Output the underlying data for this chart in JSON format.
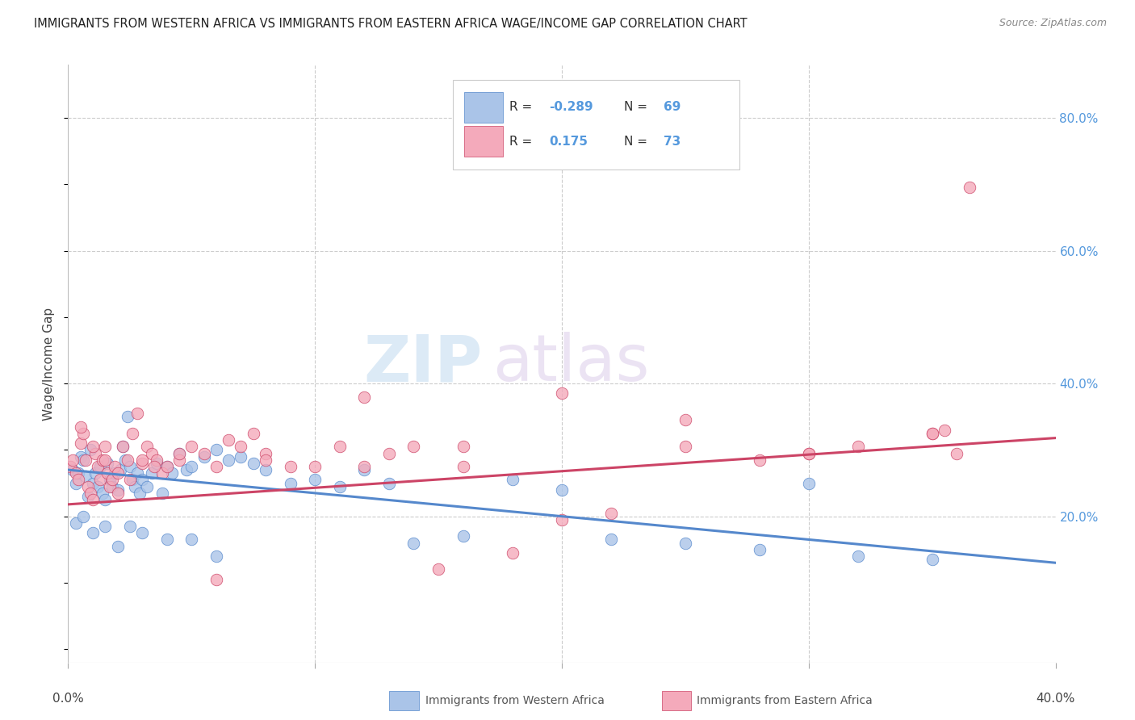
{
  "title": "IMMIGRANTS FROM WESTERN AFRICA VS IMMIGRANTS FROM EASTERN AFRICA WAGE/INCOME GAP CORRELATION CHART",
  "source": "Source: ZipAtlas.com",
  "ylabel": "Wage/Income Gap",
  "right_yticks": [
    "80.0%",
    "60.0%",
    "40.0%",
    "20.0%"
  ],
  "right_ytick_vals": [
    0.8,
    0.6,
    0.4,
    0.2
  ],
  "watermark_zip": "ZIP",
  "watermark_atlas": "atlas",
  "color_western": "#aac4e8",
  "color_eastern": "#f4aabb",
  "line_color_western": "#5588cc",
  "line_color_eastern": "#cc4466",
  "bg_color": "#ffffff",
  "grid_color": "#cccccc",
  "title_color": "#222222",
  "axis_label_color": "#444444",
  "right_axis_color": "#5599dd",
  "legend_text_color": "#333333",
  "source_color": "#888888",
  "xlim": [
    0.0,
    0.4
  ],
  "ylim": [
    -0.02,
    0.88
  ],
  "xtick_left_label": "0.0%",
  "xtick_right_label": "40.0%",
  "trend_western_x0": 0.0,
  "trend_western_x1": 0.4,
  "trend_western_y0": 0.27,
  "trend_western_y1": 0.13,
  "trend_eastern_x0": 0.0,
  "trend_eastern_x1": 0.4,
  "trend_eastern_y0": 0.218,
  "trend_eastern_y1": 0.318,
  "western_scatter_x": [
    0.002,
    0.003,
    0.004,
    0.005,
    0.006,
    0.007,
    0.008,
    0.009,
    0.01,
    0.011,
    0.012,
    0.013,
    0.014,
    0.015,
    0.016,
    0.017,
    0.018,
    0.019,
    0.02,
    0.021,
    0.022,
    0.023,
    0.024,
    0.025,
    0.026,
    0.027,
    0.028,
    0.029,
    0.03,
    0.032,
    0.034,
    0.036,
    0.038,
    0.04,
    0.042,
    0.045,
    0.048,
    0.05,
    0.055,
    0.06,
    0.065,
    0.07,
    0.075,
    0.08,
    0.09,
    0.1,
    0.11,
    0.12,
    0.13,
    0.14,
    0.16,
    0.18,
    0.2,
    0.22,
    0.25,
    0.28,
    0.3,
    0.32,
    0.35,
    0.003,
    0.006,
    0.01,
    0.015,
    0.02,
    0.025,
    0.03,
    0.04,
    0.05,
    0.06
  ],
  "western_scatter_y": [
    0.27,
    0.25,
    0.265,
    0.29,
    0.285,
    0.26,
    0.23,
    0.3,
    0.25,
    0.265,
    0.245,
    0.275,
    0.235,
    0.225,
    0.28,
    0.255,
    0.245,
    0.265,
    0.24,
    0.27,
    0.305,
    0.285,
    0.35,
    0.275,
    0.255,
    0.245,
    0.265,
    0.235,
    0.255,
    0.245,
    0.265,
    0.28,
    0.235,
    0.275,
    0.265,
    0.295,
    0.27,
    0.275,
    0.29,
    0.3,
    0.285,
    0.29,
    0.28,
    0.27,
    0.25,
    0.255,
    0.245,
    0.27,
    0.25,
    0.16,
    0.17,
    0.255,
    0.24,
    0.165,
    0.16,
    0.15,
    0.25,
    0.14,
    0.135,
    0.19,
    0.2,
    0.175,
    0.185,
    0.155,
    0.185,
    0.175,
    0.165,
    0.165,
    0.14
  ],
  "eastern_scatter_x": [
    0.001,
    0.002,
    0.003,
    0.004,
    0.005,
    0.006,
    0.007,
    0.008,
    0.009,
    0.01,
    0.011,
    0.012,
    0.013,
    0.014,
    0.015,
    0.016,
    0.017,
    0.018,
    0.019,
    0.02,
    0.022,
    0.024,
    0.026,
    0.028,
    0.03,
    0.032,
    0.034,
    0.036,
    0.038,
    0.04,
    0.045,
    0.05,
    0.055,
    0.06,
    0.065,
    0.07,
    0.075,
    0.08,
    0.09,
    0.1,
    0.11,
    0.12,
    0.13,
    0.14,
    0.15,
    0.16,
    0.18,
    0.2,
    0.22,
    0.25,
    0.28,
    0.3,
    0.32,
    0.35,
    0.005,
    0.01,
    0.015,
    0.02,
    0.025,
    0.03,
    0.035,
    0.045,
    0.06,
    0.08,
    0.12,
    0.16,
    0.2,
    0.25,
    0.3,
    0.35,
    0.355,
    0.36,
    0.365
  ],
  "eastern_scatter_y": [
    0.275,
    0.285,
    0.265,
    0.255,
    0.31,
    0.325,
    0.285,
    0.245,
    0.235,
    0.225,
    0.295,
    0.275,
    0.255,
    0.285,
    0.305,
    0.265,
    0.245,
    0.255,
    0.275,
    0.235,
    0.305,
    0.285,
    0.325,
    0.355,
    0.28,
    0.305,
    0.295,
    0.285,
    0.265,
    0.275,
    0.285,
    0.305,
    0.295,
    0.275,
    0.315,
    0.305,
    0.325,
    0.295,
    0.275,
    0.275,
    0.305,
    0.275,
    0.295,
    0.305,
    0.12,
    0.275,
    0.145,
    0.385,
    0.205,
    0.305,
    0.285,
    0.295,
    0.305,
    0.325,
    0.335,
    0.305,
    0.285,
    0.265,
    0.255,
    0.285,
    0.275,
    0.295,
    0.105,
    0.285,
    0.38,
    0.305,
    0.195,
    0.345,
    0.295,
    0.325,
    0.33,
    0.295,
    0.695
  ]
}
